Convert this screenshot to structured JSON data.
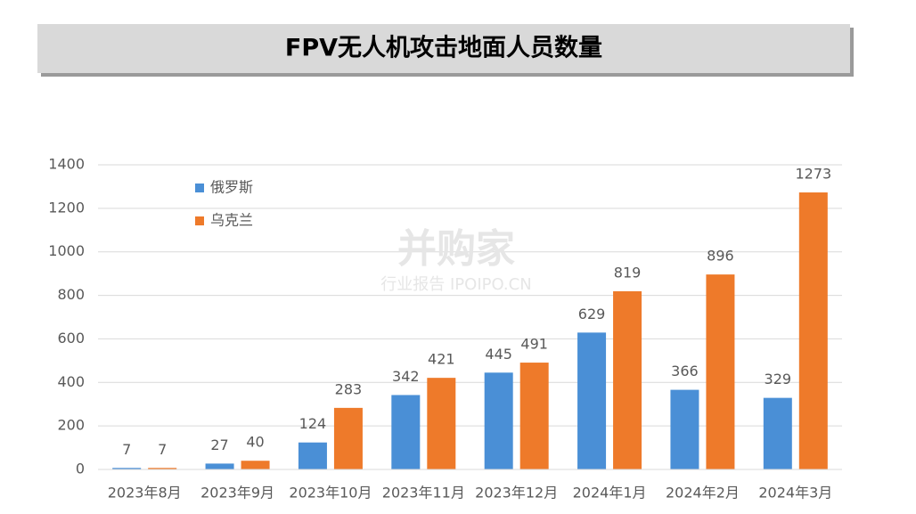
{
  "chart_data": {
    "type": "bar",
    "title": "FPV无人机攻击地面人员数量",
    "categories": [
      "2023年8月",
      "2023年9月",
      "2023年10月",
      "2023年11月",
      "2023年12月",
      "2024年1月",
      "2024年2月",
      "2024年3月"
    ],
    "series": [
      {
        "name": "俄罗斯",
        "color": "#4a8fd6",
        "values": [
          7,
          27,
          124,
          342,
          445,
          629,
          366,
          329
        ]
      },
      {
        "name": "乌克兰",
        "color": "#ee7a2a",
        "values": [
          7,
          40,
          283,
          421,
          491,
          819,
          896,
          1273
        ]
      }
    ],
    "ylim": [
      0,
      1400
    ],
    "yticks": [
      0,
      200,
      400,
      600,
      800,
      1000,
      1200,
      1400
    ],
    "grid": true,
    "legend": "top-left",
    "watermark": {
      "brand": "并购家",
      "sub": "行业报告 IPOIPO.CN"
    }
  }
}
